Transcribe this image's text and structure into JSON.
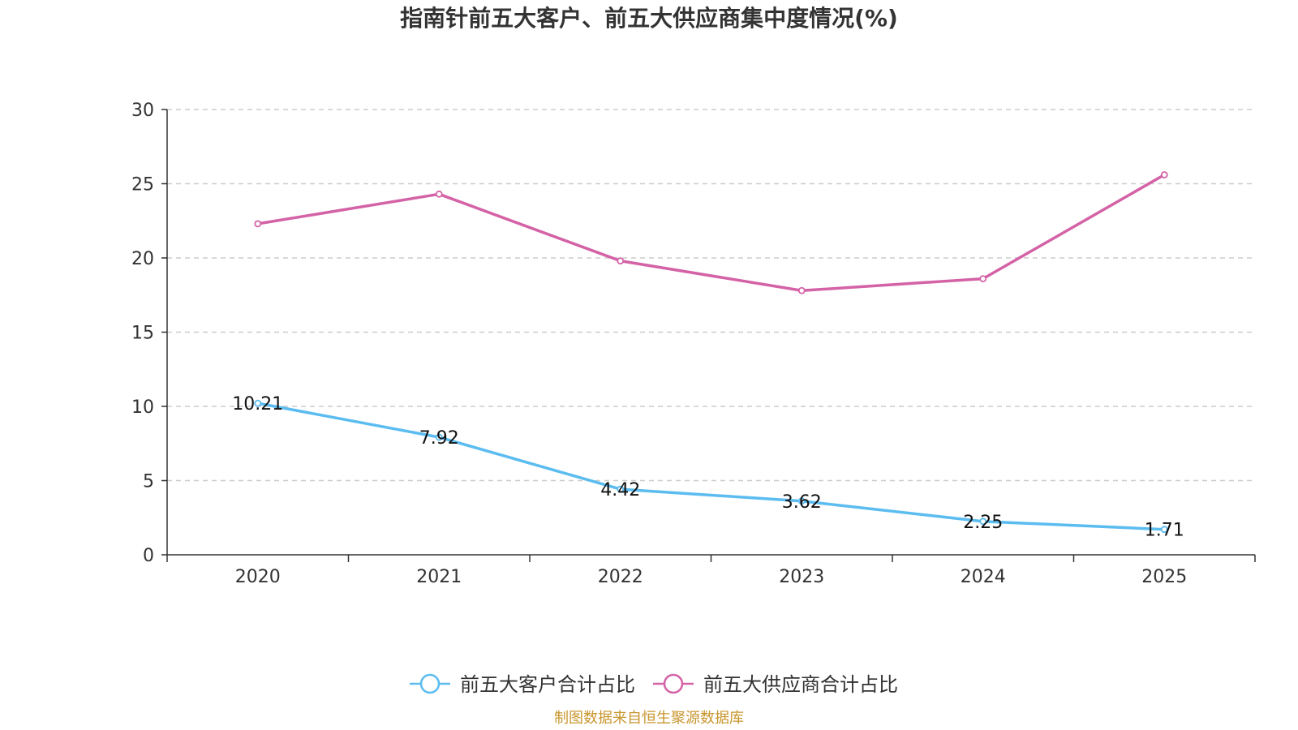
{
  "chart_data": {
    "type": "line",
    "title": "指南针前五大客户、前五大供应商集中度情况(%)",
    "categories": [
      "2020",
      "2021",
      "2022",
      "2023",
      "2024",
      "2025"
    ],
    "ylim": [
      0,
      30
    ],
    "yticks": [
      0,
      5,
      10,
      15,
      20,
      25,
      30
    ],
    "grid": true,
    "legend_position": "bottom-center",
    "series": [
      {
        "name": "前五大客户合计占比",
        "color": "#5bbcf0",
        "values": [
          10.21,
          7.92,
          4.42,
          3.62,
          2.25,
          1.71
        ],
        "labels": [
          "10.21",
          "7.92",
          "4.42",
          "3.62",
          "2.25",
          "1.71"
        ],
        "show_labels": true
      },
      {
        "name": "前五大供应商合计占比",
        "color": "#d462a6",
        "values": [
          22.3,
          24.3,
          19.8,
          17.8,
          18.6,
          25.6
        ],
        "show_labels": false
      }
    ]
  },
  "source": {
    "text": "制图数据来自恒生聚源数据库",
    "color": "#c8962e"
  }
}
